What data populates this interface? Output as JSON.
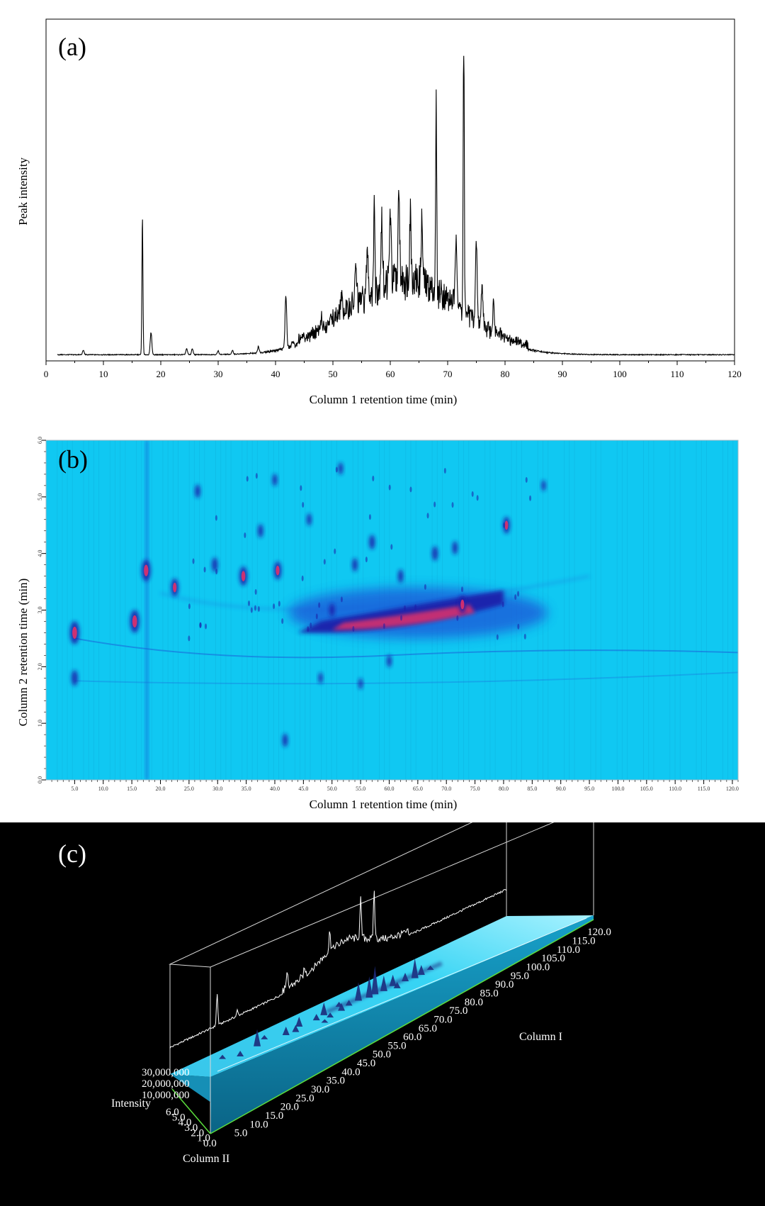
{
  "chart_data": [
    {
      "panel": "(a)",
      "type": "line",
      "xlabel": "Column  1 retention time (min)",
      "ylabel": "Peak intensity",
      "xlim": [
        0,
        120
      ],
      "ylim": [
        0,
        1
      ],
      "xticks": [
        0,
        10,
        20,
        30,
        40,
        50,
        60,
        70,
        80,
        90,
        100,
        110,
        120
      ],
      "x_start": 2,
      "baseline": 0.005,
      "hump": [
        {
          "center": 62.5,
          "height": 0.24,
          "width": 9.5
        }
      ],
      "peaks": [
        {
          "x": 6.5,
          "y": 0.015
        },
        {
          "x": 16.8,
          "y": 0.47
        },
        {
          "x": 18.3,
          "y": 0.075
        },
        {
          "x": 24.5,
          "y": 0.02
        },
        {
          "x": 25.5,
          "y": 0.02
        },
        {
          "x": 30.0,
          "y": 0.012
        },
        {
          "x": 32.5,
          "y": 0.012
        },
        {
          "x": 37.0,
          "y": 0.02
        },
        {
          "x": 41.8,
          "y": 0.18
        },
        {
          "x": 43.0,
          "y": 0.018
        },
        {
          "x": 48.0,
          "y": 0.035
        },
        {
          "x": 49.5,
          "y": 0.025
        },
        {
          "x": 51.5,
          "y": 0.07
        },
        {
          "x": 54.0,
          "y": 0.12
        },
        {
          "x": 56.0,
          "y": 0.16
        },
        {
          "x": 57.2,
          "y": 0.33
        },
        {
          "x": 58.5,
          "y": 0.22
        },
        {
          "x": 60.0,
          "y": 0.25
        },
        {
          "x": 61.5,
          "y": 0.28
        },
        {
          "x": 63.5,
          "y": 0.24
        },
        {
          "x": 65.5,
          "y": 0.2
        },
        {
          "x": 68.0,
          "y": 0.63
        },
        {
          "x": 71.5,
          "y": 0.24
        },
        {
          "x": 72.8,
          "y": 1.0
        },
        {
          "x": 75.0,
          "y": 0.26
        },
        {
          "x": 76.0,
          "y": 0.14
        },
        {
          "x": 78.0,
          "y": 0.1
        }
      ]
    },
    {
      "panel": "(b)",
      "type": "heatmap",
      "xlabel": "Column  1 retention time (min)",
      "ylabel": "Column 2 retention time (min)",
      "xlim": [
        0,
        121
      ],
      "ylim": [
        0,
        6.0
      ],
      "xticks": [
        5.0,
        10.0,
        15.0,
        20.0,
        25.0,
        30.0,
        35.0,
        40.0,
        45.0,
        50.0,
        55.0,
        60.0,
        65.0,
        70.0,
        75.0,
        80.0,
        85.0,
        90.0,
        95.0,
        100.0,
        105.0,
        110.0,
        115.0,
        120.0
      ],
      "yticks": [
        0.0,
        1.0,
        2.0,
        3.0,
        4.0,
        5.0,
        6.0
      ],
      "colors": {
        "background": "#10c8f2",
        "low": "#1a4ed6",
        "mid": "#1e1ea8",
        "high": "#e0306a",
        "peak": "#ff5a78"
      },
      "spots": [
        {
          "x": 5.0,
          "y": 2.6,
          "size": 1.3
        },
        {
          "x": 5.0,
          "y": 1.8,
          "size": 0.7
        },
        {
          "x": 15.5,
          "y": 2.8,
          "size": 1.3
        },
        {
          "x": 17.5,
          "y": 3.7,
          "size": 1.2
        },
        {
          "x": 22.5,
          "y": 3.4,
          "size": 0.9
        },
        {
          "x": 26.5,
          "y": 5.1,
          "size": 0.5
        },
        {
          "x": 29.5,
          "y": 3.8,
          "size": 0.6
        },
        {
          "x": 34.5,
          "y": 3.6,
          "size": 1.0
        },
        {
          "x": 37.5,
          "y": 4.4,
          "size": 0.5
        },
        {
          "x": 40.5,
          "y": 3.7,
          "size": 0.9
        },
        {
          "x": 41.8,
          "y": 0.7,
          "size": 0.5
        },
        {
          "x": 40.0,
          "y": 5.3,
          "size": 0.4
        },
        {
          "x": 46.0,
          "y": 4.6,
          "size": 0.4
        },
        {
          "x": 50.0,
          "y": 3.0,
          "size": 0.5
        },
        {
          "x": 51.5,
          "y": 5.5,
          "size": 0.4
        },
        {
          "x": 54.0,
          "y": 3.8,
          "size": 0.5
        },
        {
          "x": 57.0,
          "y": 4.2,
          "size": 0.6
        },
        {
          "x": 62.0,
          "y": 3.6,
          "size": 0.5
        },
        {
          "x": 68.0,
          "y": 4.0,
          "size": 0.6
        },
        {
          "x": 71.5,
          "y": 4.1,
          "size": 0.5
        },
        {
          "x": 72.8,
          "y": 3.1,
          "size": 0.9
        },
        {
          "x": 80.5,
          "y": 4.5,
          "size": 0.8
        },
        {
          "x": 87.0,
          "y": 5.2,
          "size": 0.3
        },
        {
          "x": 60.0,
          "y": 2.1,
          "size": 0.4
        },
        {
          "x": 55.0,
          "y": 1.7,
          "size": 0.3
        },
        {
          "x": 48.0,
          "y": 1.8,
          "size": 0.3
        }
      ],
      "band": {
        "x_start": 44,
        "x_end": 82,
        "y_start": 2.55,
        "y_end": 3.05
      }
    },
    {
      "panel": "(c)",
      "type": "surface3d",
      "axis_labels": {
        "z": "Intensity",
        "y": "Column II",
        "x": "Column I"
      },
      "z_ticks": [
        "30,000,000",
        "20,000,000",
        "10,000,000"
      ],
      "y_ticks": [
        "6.0",
        "5.0",
        "4.0",
        "3.0",
        "2.0",
        "1.0",
        "0.0"
      ],
      "x_ticks": [
        "5.0",
        "10.0",
        "15.0",
        "20.0",
        "25.0",
        "30.0",
        "35.0",
        "40.0",
        "45.0",
        "50.0",
        "55.0",
        "60.0",
        "65.0",
        "70.0",
        "75.0",
        "80.0",
        "85.0",
        "90.0",
        "95.0",
        "100.0",
        "105.0",
        "110.0",
        "115.0",
        "120.0"
      ],
      "colors": {
        "background": "#000000",
        "surface": "#2ec9ee",
        "surface_dark": "#0a7fa8",
        "peak": "#1c2a7a",
        "axis": "#5adc3c",
        "frame": "#d8d8d8"
      }
    }
  ],
  "labels": {
    "panel_a": "(a)",
    "panel_b": "(b)",
    "panel_c": "(c)"
  }
}
